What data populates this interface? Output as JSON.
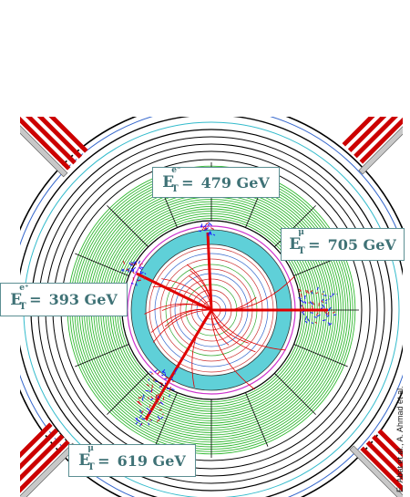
{
  "labels": [
    {
      "id": "electron-minus",
      "E": "E",
      "sub": "T",
      "sup": "e⁻",
      "eq": "=",
      "value": "479",
      "unit": "GeV"
    },
    {
      "id": "muon-right",
      "E": "E",
      "sub": "T",
      "sup": "μ",
      "eq": "=",
      "value": "705",
      "unit": "GeV"
    },
    {
      "id": "electron-plus",
      "E": "E",
      "sub": "T",
      "sup": "e⁺",
      "eq": "=",
      "value": "393",
      "unit": "GeV"
    },
    {
      "id": "muon-bottom",
      "E": "E",
      "sub": "T",
      "sup": "μ",
      "eq": "=",
      "value": "619",
      "unit": "GeV"
    }
  ],
  "credit": "E. Abat et al., A. Ahmad et al.",
  "colors": {
    "calo_green": "#2fb82f",
    "tracker_cyan": "#5fd0d8",
    "track_red": "#e00000",
    "hit_blue": "#1a1aff",
    "magnet_red": "#cc0000",
    "label_text": "#3f7276"
  }
}
